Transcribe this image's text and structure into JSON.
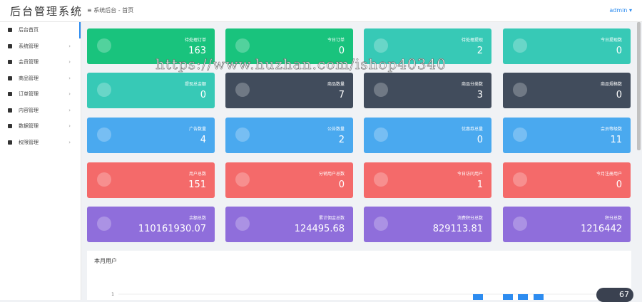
{
  "header": {
    "logo": "后台管理系统",
    "breadcrumb": "系统后台 - 首页",
    "user": "admin ▾"
  },
  "sidebar": {
    "items": [
      "后台首页",
      "系统管理",
      "会员管理",
      "商品管理",
      "订单管理",
      "内容管理",
      "数据管理",
      "权限管理"
    ]
  },
  "cards": [
    {
      "label": "待处理订单",
      "value": 163,
      "color": "#19c37d"
    },
    {
      "label": "今日订单",
      "value": 0,
      "color": "#19c37d"
    },
    {
      "label": "待处理提现",
      "value": 2,
      "color": "#37c9b6"
    },
    {
      "label": "今日提现数",
      "value": 0,
      "color": "#37c9b6"
    },
    {
      "label": "提现总金额",
      "value": 0,
      "color": "#37c9b6"
    },
    {
      "label": "商品数量",
      "value": 7,
      "color": "#414c5c"
    },
    {
      "label": "商品分类数",
      "value": 3,
      "color": "#414c5c"
    },
    {
      "label": "商品规格数",
      "value": 0,
      "color": "#414c5c"
    },
    {
      "label": "广告数量",
      "value": 4,
      "color": "#4aa9ef"
    },
    {
      "label": "公告数量",
      "value": 2,
      "color": "#4aa9ef"
    },
    {
      "label": "优惠券总量",
      "value": 0,
      "color": "#4aa9ef"
    },
    {
      "label": "会员等级数",
      "value": 11,
      "color": "#4aa9ef"
    },
    {
      "label": "用户总数",
      "value": 151,
      "color": "#f46a6a"
    },
    {
      "label": "分销用户总数",
      "value": 0,
      "color": "#f46a6a"
    },
    {
      "label": "今日访问用户",
      "value": 1,
      "color": "#f46a6a"
    },
    {
      "label": "今月注册用户",
      "value": 0,
      "color": "#f46a6a"
    },
    {
      "label": "余额总数",
      "value": 110161930.07,
      "color": "#8f6edb"
    },
    {
      "label": "累计佣金总数",
      "value": 124495.68,
      "color": "#8f6edb"
    },
    {
      "label": "消费积分总数",
      "value": 829113.81,
      "color": "#8f6edb"
    },
    {
      "label": "积分总数",
      "value": 1216442,
      "color": "#8f6edb"
    }
  ],
  "chart": {
    "title": "本月用户",
    "yticks": [
      1
    ],
    "values": [
      1,
      1,
      1,
      1
    ],
    "color": "#2d8cf0"
  },
  "watermark": "https://www.huzhan.com/ishop40340",
  "badge": "67"
}
